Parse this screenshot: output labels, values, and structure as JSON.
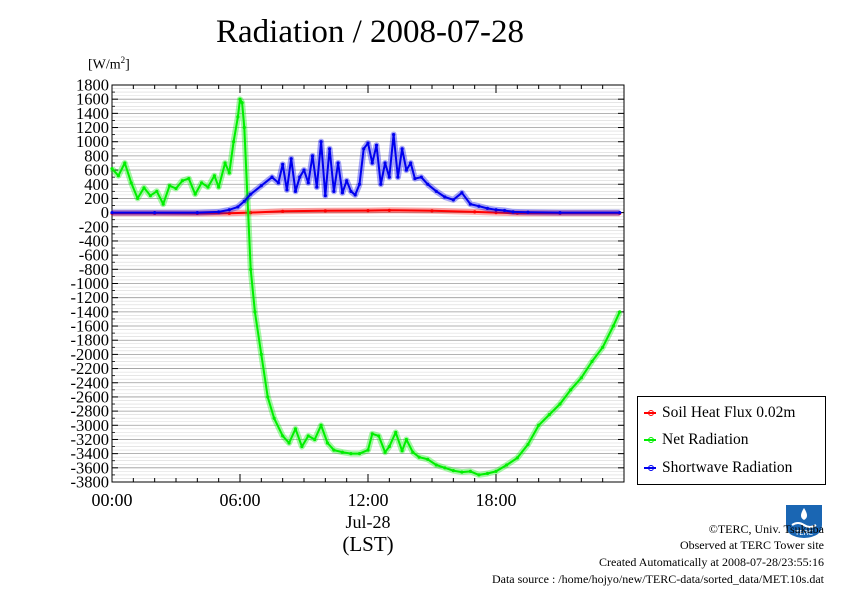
{
  "chart_data": {
    "type": "line",
    "title": "Radiation / 2008-07-28",
    "ylabel_unit": "[W/m",
    "ylabel_unit_sup": "2",
    "ylabel_unit_close": "]",
    "xlabel": "(LST)",
    "date_label": "Jul-28",
    "ylim": [
      -3800,
      1800
    ],
    "xlim": [
      0,
      24
    ],
    "y_ticks": [
      1800,
      1600,
      1400,
      1200,
      1000,
      800,
      600,
      400,
      200,
      0,
      -200,
      -400,
      -600,
      -800,
      -1000,
      -1200,
      -1400,
      -1600,
      -1800,
      -2000,
      -2200,
      -2400,
      -2600,
      -2800,
      -3000,
      -3200,
      -3400,
      -3600,
      -3800
    ],
    "x_ticks": [
      {
        "x": 0,
        "label": "00:00"
      },
      {
        "x": 6,
        "label": "06:00"
      },
      {
        "x": 12,
        "label": "12:00"
      },
      {
        "x": 18,
        "label": "18:00"
      }
    ],
    "grid": true,
    "legend_position": "bottom-right",
    "series": [
      {
        "name": "Soil Heat Flux 0.02m",
        "color": "#ff0000",
        "x": [
          0,
          2,
          4,
          5.5,
          6.5,
          8,
          10,
          12,
          13,
          15,
          17,
          18,
          19,
          21,
          23.8
        ],
        "values": [
          -10,
          -10,
          -12,
          -10,
          0,
          18,
          25,
          28,
          32,
          25,
          10,
          0,
          -8,
          -10,
          -10
        ]
      },
      {
        "name": "Net Radiation",
        "color": "#00ee00",
        "x": [
          0,
          0.3,
          0.6,
          0.9,
          1.2,
          1.5,
          1.8,
          2.1,
          2.4,
          2.7,
          3.0,
          3.3,
          3.6,
          3.9,
          4.2,
          4.5,
          4.8,
          5.0,
          5.3,
          5.5,
          5.7,
          5.9,
          6.0,
          6.1,
          6.2,
          6.35,
          6.5,
          6.7,
          7.0,
          7.3,
          7.6,
          8.0,
          8.3,
          8.6,
          8.9,
          9.2,
          9.5,
          9.8,
          10.1,
          10.4,
          10.8,
          11.2,
          11.6,
          12.0,
          12.2,
          12.5,
          12.8,
          13.0,
          13.3,
          13.6,
          13.8,
          14.1,
          14.4,
          14.8,
          15.2,
          15.6,
          16.0,
          16.4,
          16.8,
          17.2,
          17.6,
          18.0,
          18.5,
          19.0,
          19.5,
          20.0,
          20.5,
          21.0,
          21.5,
          22.0,
          22.5,
          23.0,
          23.5,
          23.8
        ],
        "values": [
          620,
          520,
          700,
          420,
          200,
          350,
          240,
          300,
          120,
          380,
          340,
          450,
          480,
          260,
          420,
          360,
          520,
          360,
          700,
          560,
          1000,
          1350,
          1600,
          1550,
          1200,
          200,
          -800,
          -1400,
          -2000,
          -2600,
          -2900,
          -3150,
          -3250,
          -3050,
          -3300,
          -3150,
          -3200,
          -3000,
          -3250,
          -3350,
          -3380,
          -3400,
          -3400,
          -3350,
          -3120,
          -3150,
          -3380,
          -3300,
          -3100,
          -3360,
          -3200,
          -3380,
          -3450,
          -3480,
          -3560,
          -3600,
          -3640,
          -3660,
          -3650,
          -3700,
          -3680,
          -3650,
          -3560,
          -3460,
          -3270,
          -3000,
          -2850,
          -2700,
          -2500,
          -2330,
          -2100,
          -1900,
          -1600,
          -1400
        ]
      },
      {
        "name": "Shortwave Radiation",
        "color": "#0000ee",
        "x": [
          0,
          2,
          4,
          5.0,
          5.5,
          5.9,
          6.2,
          6.5,
          7.0,
          7.5,
          7.8,
          8.0,
          8.2,
          8.4,
          8.6,
          8.8,
          9.0,
          9.2,
          9.4,
          9.6,
          9.8,
          10.0,
          10.2,
          10.4,
          10.6,
          10.8,
          11.0,
          11.2,
          11.4,
          11.6,
          11.8,
          12.0,
          12.2,
          12.4,
          12.6,
          12.8,
          13.0,
          13.2,
          13.4,
          13.6,
          13.8,
          14.0,
          14.2,
          14.5,
          14.8,
          15.2,
          15.6,
          16.0,
          16.4,
          16.8,
          17.2,
          17.6,
          18.0,
          18.4,
          18.8,
          19.5,
          21,
          23.8
        ],
        "values": [
          0,
          0,
          0,
          10,
          40,
          80,
          160,
          260,
          380,
          500,
          420,
          680,
          320,
          760,
          300,
          500,
          600,
          420,
          800,
          360,
          1000,
          240,
          900,
          300,
          700,
          280,
          450,
          300,
          250,
          400,
          900,
          980,
          700,
          950,
          400,
          700,
          500,
          1100,
          500,
          900,
          600,
          700,
          480,
          500,
          400,
          300,
          220,
          180,
          280,
          120,
          90,
          60,
          40,
          30,
          10,
          5,
          0,
          0
        ]
      }
    ]
  },
  "footer": {
    "copyright": "©TERC, Univ. Tsukuba",
    "observed": "Observed at TERC Tower site",
    "created": "Created Automatically at 2008-07-28/23:55:16",
    "source": "Data source : /home/hojyo/new/TERC-data/sorted_data/MET.10s.dat"
  },
  "logo_text": "TERC"
}
